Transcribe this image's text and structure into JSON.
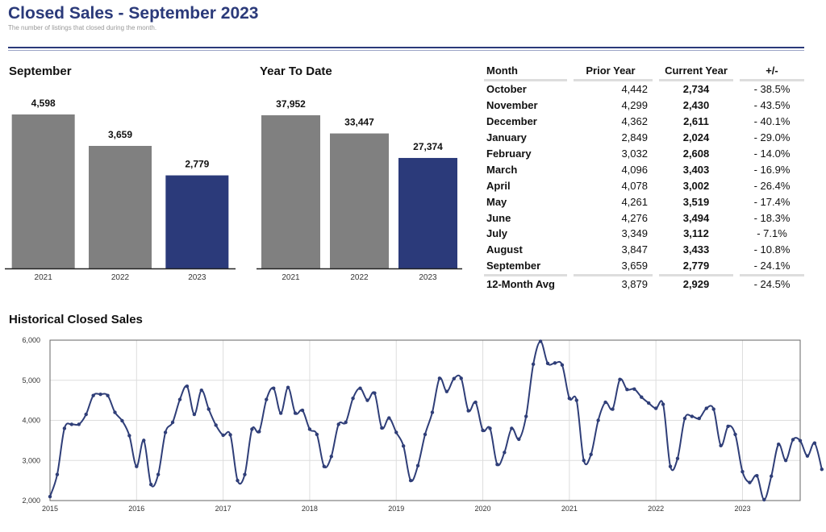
{
  "header": {
    "title": "Closed Sales - September 2023",
    "subtitle": "The number of listings that closed during the month."
  },
  "sections": {
    "september": "September",
    "ytd": "Year To Date",
    "historical": "Historical Closed Sales"
  },
  "colors": {
    "gray": "#808080",
    "navy": "#2b3a7a",
    "line": "#2f3e78",
    "grid": "#dddddd"
  },
  "table": {
    "headers": [
      "Month",
      "Prior Year",
      "Current Year",
      "+/-"
    ],
    "rows": [
      [
        "October",
        "4,442",
        "2,734",
        "- 38.5%"
      ],
      [
        "November",
        "4,299",
        "2,430",
        "- 43.5%"
      ],
      [
        "December",
        "4,362",
        "2,611",
        "- 40.1%"
      ],
      [
        "January",
        "2,849",
        "2,024",
        "- 29.0%"
      ],
      [
        "February",
        "3,032",
        "2,608",
        "- 14.0%"
      ],
      [
        "March",
        "4,096",
        "3,403",
        "- 16.9%"
      ],
      [
        "April",
        "4,078",
        "3,002",
        "- 26.4%"
      ],
      [
        "May",
        "4,261",
        "3,519",
        "- 17.4%"
      ],
      [
        "June",
        "4,276",
        "3,494",
        "- 18.3%"
      ],
      [
        "July",
        "3,349",
        "3,112",
        "- 7.1%"
      ],
      [
        "August",
        "3,847",
        "3,433",
        "- 10.8%"
      ],
      [
        "September",
        "3,659",
        "2,779",
        "- 24.1%"
      ]
    ],
    "avg": [
      "12-Month Avg",
      "3,879",
      "2,929",
      "- 24.5%"
    ]
  },
  "chart_data": [
    {
      "type": "bar",
      "title": "September",
      "categories": [
        "2021",
        "2022",
        "2023"
      ],
      "values": [
        4598,
        3659,
        2779
      ],
      "labels": [
        "4,598",
        "3,659",
        "2,779"
      ],
      "ylim": [
        0,
        4598
      ]
    },
    {
      "type": "bar",
      "title": "Year To Date",
      "categories": [
        "2021",
        "2022",
        "2023"
      ],
      "values": [
        37952,
        33447,
        27374
      ],
      "labels": [
        "37,952",
        "33,447",
        "27,374"
      ],
      "ylim": [
        0,
        37952
      ]
    },
    {
      "type": "line",
      "title": "Historical Closed Sales",
      "ylim": [
        2000,
        6000
      ],
      "yticks": [
        2000,
        3000,
        4000,
        5000,
        6000
      ],
      "ytick_labels": [
        "2,000",
        "3,000",
        "4,000",
        "5,000",
        "6,000"
      ],
      "xticks": [
        "2015",
        "2016",
        "2017",
        "2018",
        "2019",
        "2020",
        "2021",
        "2022",
        "2023"
      ],
      "grid": true,
      "start": "2015-01",
      "end": "2023-09",
      "values": [
        2100,
        2650,
        3800,
        3900,
        3900,
        4150,
        4620,
        4650,
        4620,
        4200,
        3990,
        3620,
        2850,
        3500,
        2400,
        2650,
        3700,
        3950,
        4520,
        4850,
        4150,
        4750,
        4280,
        3880,
        3630,
        3640,
        2500,
        2650,
        3780,
        3720,
        4520,
        4800,
        4180,
        4820,
        4180,
        4250,
        3780,
        3650,
        2850,
        3100,
        3900,
        3950,
        4550,
        4800,
        4500,
        4680,
        3810,
        4060,
        3700,
        3360,
        2500,
        2870,
        3650,
        4200,
        5050,
        4720,
        5040,
        5050,
        4240,
        4450,
        3750,
        3800,
        2900,
        3200,
        3800,
        3530,
        4100,
        5400,
        5970,
        5420,
        5430,
        5380,
        4550,
        4500,
        3000,
        3150,
        4000,
        4450,
        4280,
        5020,
        4770,
        4780,
        4580,
        4430,
        4300,
        4400,
        2850,
        3050,
        4050,
        4100,
        4050,
        4300,
        4280,
        3370,
        3850,
        3650,
        2720,
        2450,
        2620,
        2020,
        2608,
        3403,
        3002,
        3519,
        3494,
        3112,
        3433,
        2779
      ]
    }
  ]
}
